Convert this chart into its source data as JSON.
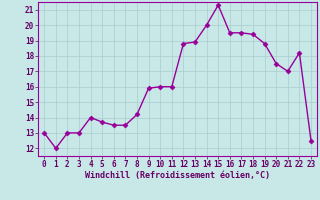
{
  "x": [
    0,
    1,
    2,
    3,
    4,
    5,
    6,
    7,
    8,
    9,
    10,
    11,
    12,
    13,
    14,
    15,
    16,
    17,
    18,
    19,
    20,
    21,
    22,
    23
  ],
  "y": [
    13.0,
    12.0,
    13.0,
    13.0,
    14.0,
    13.7,
    13.5,
    13.5,
    14.2,
    15.9,
    16.0,
    16.0,
    18.8,
    18.9,
    20.0,
    21.3,
    19.5,
    19.5,
    19.4,
    18.8,
    17.5,
    17.0,
    18.2,
    12.5
  ],
  "line_color": "#990099",
  "marker_color": "#990099",
  "bg_color": "#c8e8e8",
  "grid_color": "#aacccc",
  "axis_label_color": "#660066",
  "tick_label_color": "#660066",
  "xlabel": "Windchill (Refroidissement éolien,°C)",
  "ylim": [
    11.5,
    21.5
  ],
  "xlim": [
    -0.5,
    23.5
  ],
  "yticks": [
    12,
    13,
    14,
    15,
    16,
    17,
    18,
    19,
    20,
    21
  ],
  "xticks": [
    0,
    1,
    2,
    3,
    4,
    5,
    6,
    7,
    8,
    9,
    10,
    11,
    12,
    13,
    14,
    15,
    16,
    17,
    18,
    19,
    20,
    21,
    22,
    23
  ],
  "spine_color": "#990099",
  "figsize": [
    3.2,
    2.0
  ],
  "dpi": 100
}
